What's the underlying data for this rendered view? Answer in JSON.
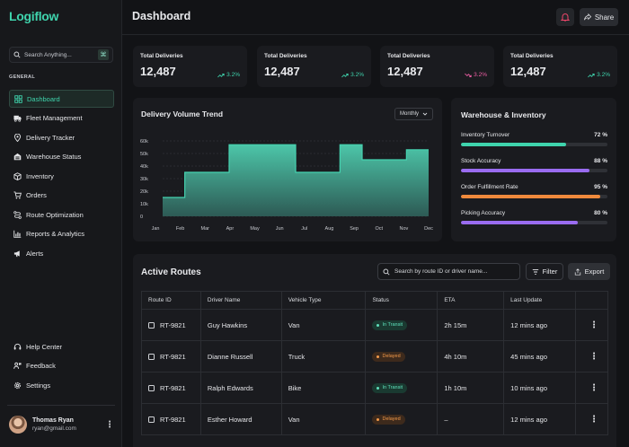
{
  "app": {
    "logo": "Logiflow"
  },
  "sidebar": {
    "search_placeholder": "Search Anything...",
    "shortcut": "⌘",
    "section_label": "GENERAL",
    "items": [
      {
        "label": "Dashboard",
        "icon": "dashboard-icon",
        "active": true
      },
      {
        "label": "Fleet Management",
        "icon": "truck-icon"
      },
      {
        "label": "Delivery Tracker",
        "icon": "location-pin-icon"
      },
      {
        "label": "Warehouse Status",
        "icon": "warehouse-icon"
      },
      {
        "label": "Inventory",
        "icon": "box-icon"
      },
      {
        "label": "Orders",
        "icon": "cart-icon"
      },
      {
        "label": "Route Optimization",
        "icon": "route-icon"
      },
      {
        "label": "Reports & Analytics",
        "icon": "bar-chart-icon"
      },
      {
        "label": "Alerts",
        "icon": "megaphone-icon"
      }
    ],
    "bottom_items": [
      {
        "label": "Help Center",
        "icon": "headset-icon"
      },
      {
        "label": "Feedback",
        "icon": "feedback-icon"
      },
      {
        "label": "Settings",
        "icon": "gear-icon"
      }
    ],
    "user": {
      "name": "Thomas Ryan",
      "email": "ryan@gmail.com"
    }
  },
  "header": {
    "title": "Dashboard",
    "share_label": "Share"
  },
  "stats": [
    {
      "label": "Total Deliveries",
      "value": "12,487",
      "trend": "3.2%",
      "direction": "up"
    },
    {
      "label": "Total Deliveries",
      "value": "12,487",
      "trend": "3.2%",
      "direction": "up"
    },
    {
      "label": "Total Deliveries",
      "value": "12,487",
      "trend": "3.2%",
      "direction": "down"
    },
    {
      "label": "Total Deliveries",
      "value": "12,487",
      "trend": "3.2%",
      "direction": "up"
    }
  ],
  "chart": {
    "title": "Delivery Volume Trend",
    "period": "Monthly",
    "colors": {
      "fill_top": "#4fcfb0",
      "fill_bottom": "#2e5d57",
      "line": "#45d3b0",
      "grid": "#3a3c42"
    }
  },
  "chart_data": {
    "type": "area",
    "title": "Delivery Volume Trend",
    "categories": [
      "Jan",
      "Feb",
      "Mar",
      "Apr",
      "May",
      "Jun",
      "Jul",
      "Aug",
      "Sep",
      "Oct",
      "Nov",
      "Dec"
    ],
    "values": [
      15000,
      35000,
      35000,
      57000,
      57000,
      57000,
      35000,
      35000,
      57000,
      45000,
      45000,
      53000
    ],
    "yticks": [
      0,
      10,
      20,
      30,
      40,
      50,
      60
    ],
    "ytick_labels": [
      "0",
      "10k",
      "20k",
      "30k",
      "40k",
      "50k",
      "60k"
    ],
    "ylim": [
      0,
      60000
    ],
    "grid": true,
    "step": true
  },
  "warehouse": {
    "title": "Warehouse & Inventory",
    "metrics": [
      {
        "label": "Inventory Turnover",
        "value": "72 %",
        "fraction": 0.72,
        "color": "#3fd4ad"
      },
      {
        "label": "Stock Accuracy",
        "value": "88 %",
        "fraction": 0.88,
        "color": "#9a6cf0"
      },
      {
        "label": "Order Fulfillment Rate",
        "value": "95 %",
        "fraction": 0.95,
        "color": "#f08a3c"
      },
      {
        "label": "Picking Accuracy",
        "value": "80 %",
        "fraction": 0.8,
        "color": "#9a6cf0"
      }
    ]
  },
  "routes": {
    "title": "Active Routes",
    "search_placeholder": "Search by route ID or driver name...",
    "filter_label": "Filter",
    "export_label": "Export",
    "columns": [
      "Route ID",
      "Driver Name",
      "Vehicle Type",
      "Status",
      "ETA",
      "Last Update"
    ],
    "rows": [
      {
        "id": "RT-9821",
        "driver": "Guy Hawkins",
        "vehicle": "Van",
        "status": "In Transit",
        "status_type": "transit",
        "eta": "2h 15m",
        "update": "12 mins ago"
      },
      {
        "id": "RT-9821",
        "driver": "Dianne Russell",
        "vehicle": "Truck",
        "status": "Delayed",
        "status_type": "delayed",
        "eta": "4h 10m",
        "update": "45 mins ago"
      },
      {
        "id": "RT-9821",
        "driver": "Ralph Edwards",
        "vehicle": "Bike",
        "status": "In Transit",
        "status_type": "transit",
        "eta": "1h 10m",
        "update": "10 mins ago"
      },
      {
        "id": "RT-9821",
        "driver": "Esther Howard",
        "vehicle": "Van",
        "status": "Delayed",
        "status_type": "delayed",
        "eta": "–",
        "update": "12 mins ago"
      }
    ]
  }
}
